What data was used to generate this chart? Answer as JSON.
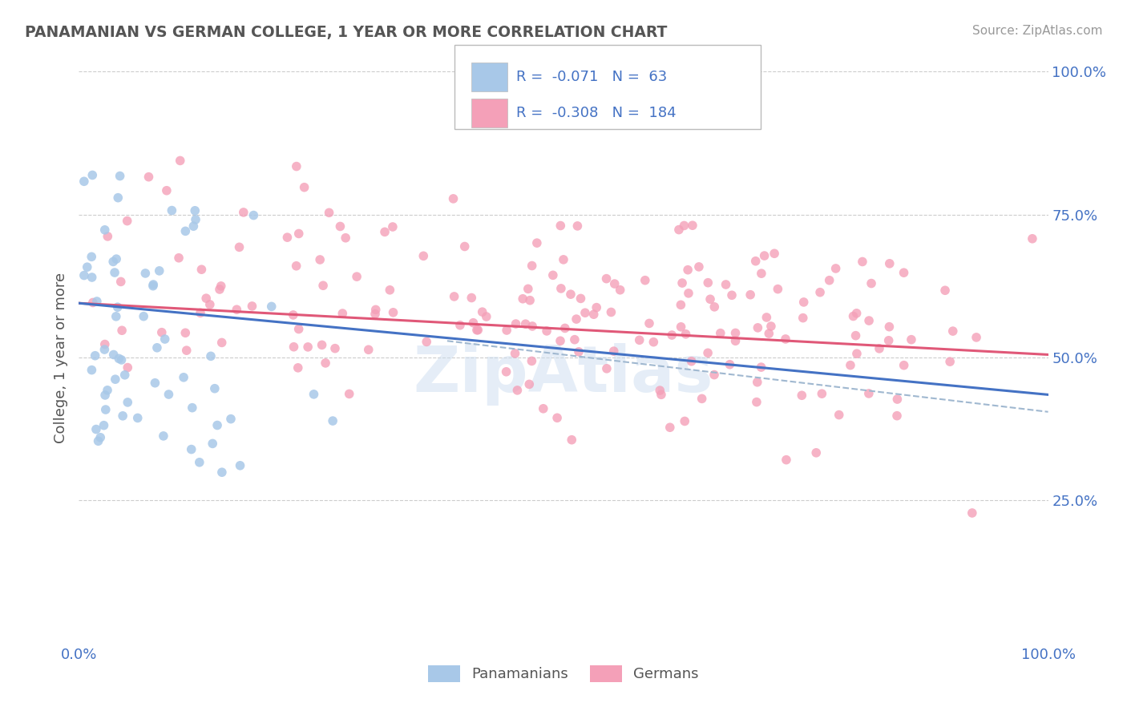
{
  "title": "PANAMANIAN VS GERMAN COLLEGE, 1 YEAR OR MORE CORRELATION CHART",
  "source": "Source: ZipAtlas.com",
  "ylabel": "College, 1 year or more",
  "panamanian_scatter_color": "#a8c8e8",
  "german_scatter_color": "#f4a0b8",
  "panamanian_line_color": "#4472c4",
  "german_line_color": "#e05878",
  "dashed_line_color": "#a0b8d0",
  "watermark": "ZipAtlas",
  "background_color": "#ffffff",
  "grid_color": "#cccccc",
  "title_color": "#555555",
  "axis_color": "#4472c4",
  "pan_R": -0.071,
  "pan_N": 63,
  "ger_R": -0.308,
  "ger_N": 184,
  "xmin": 0.0,
  "xmax": 1.0,
  "ymin": 0.0,
  "ymax": 1.0,
  "pan_line_start_y": 0.595,
  "pan_line_end_y": 0.435,
  "ger_line_start_y": 0.595,
  "ger_line_end_y": 0.505
}
